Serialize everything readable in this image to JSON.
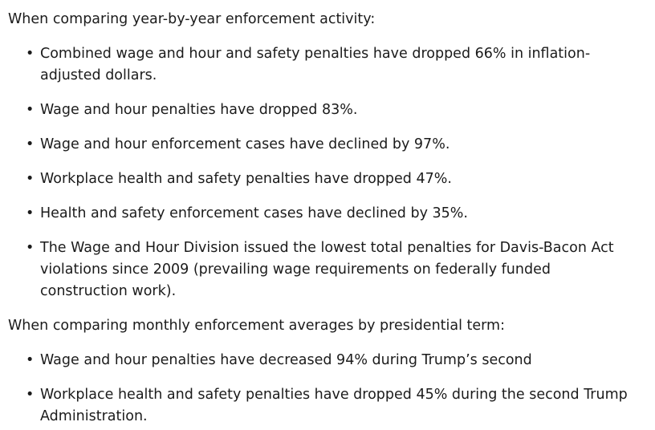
{
  "section1": {
    "intro": "When comparing year-by-year enforcement activity:",
    "items": [
      "Combined wage and hour and safety penalties have dropped 66% in inflation-adjusted dollars.",
      "Wage and hour penalties have dropped 83%.",
      "Wage and hour enforcement cases have declined by 97%.",
      "Workplace health and safety penalties have dropped 47%.",
      "Health and safety enforcement cases have declined by 35%.",
      "The Wage and Hour Division issued the lowest total penalties for Davis-Bacon Act violations since 2009 (prevailing wage requirements on federally funded construction work)."
    ]
  },
  "section2": {
    "intro": "When comparing monthly enforcement averages by presidential term:",
    "items": [
      "Wage and hour penalties have decreased 94% during Trump’s second",
      "Workplace health and safety penalties have dropped 45% during the second Trump Administration."
    ]
  },
  "bullet": "•"
}
